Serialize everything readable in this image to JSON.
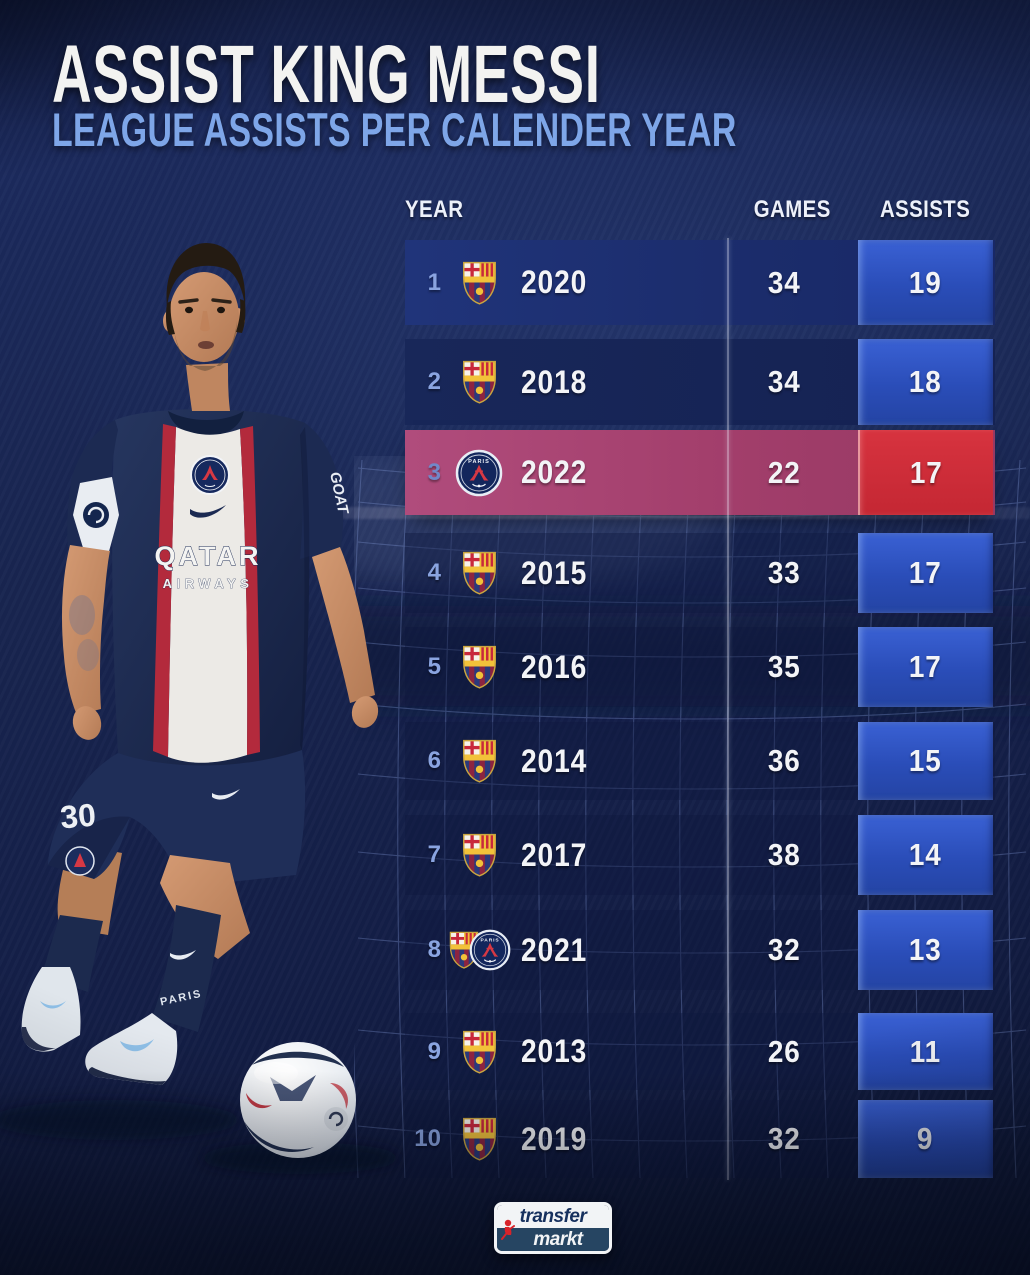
{
  "header": {
    "title": "ASSIST KING MESSI",
    "subtitle": "LEAGUE ASSISTS PER CALENDER YEAR"
  },
  "table": {
    "columns": {
      "year": "YEAR",
      "games": "GAMES",
      "assists": "ASSISTS"
    },
    "rows": [
      {
        "rank": "1",
        "clubs": [
          "barcelona"
        ],
        "year": "2020",
        "games": "34",
        "assists": "19",
        "highlighted": false
      },
      {
        "rank": "2",
        "clubs": [
          "barcelona"
        ],
        "year": "2018",
        "games": "34",
        "assists": "18",
        "highlighted": false
      },
      {
        "rank": "3",
        "clubs": [
          "psg"
        ],
        "year": "2022",
        "games": "22",
        "assists": "17",
        "highlighted": true
      },
      {
        "rank": "4",
        "clubs": [
          "barcelona"
        ],
        "year": "2015",
        "games": "33",
        "assists": "17",
        "highlighted": false
      },
      {
        "rank": "5",
        "clubs": [
          "barcelona"
        ],
        "year": "2016",
        "games": "35",
        "assists": "17",
        "highlighted": false
      },
      {
        "rank": "6",
        "clubs": [
          "barcelona"
        ],
        "year": "2014",
        "games": "36",
        "assists": "15",
        "highlighted": false
      },
      {
        "rank": "7",
        "clubs": [
          "barcelona"
        ],
        "year": "2017",
        "games": "38",
        "assists": "14",
        "highlighted": false
      },
      {
        "rank": "8",
        "clubs": [
          "barcelona",
          "psg"
        ],
        "year": "2021",
        "games": "32",
        "assists": "13",
        "highlighted": false
      },
      {
        "rank": "9",
        "clubs": [
          "barcelona"
        ],
        "year": "2013",
        "games": "26",
        "assists": "11",
        "highlighted": false
      },
      {
        "rank": "10",
        "clubs": [
          "barcelona"
        ],
        "year": "2019",
        "games": "32",
        "assists": "9",
        "highlighted": false
      }
    ]
  },
  "player": {
    "jersey_sponsor_line1": "QATAR",
    "jersey_sponsor_line2": "AIRWAYS",
    "jersey_sleeve_text": "GOAT",
    "shorts_number": "30",
    "sock_text": "PARIS"
  },
  "footer": {
    "logo_top": "transfer",
    "logo_bottom": "markt"
  },
  "colors": {
    "background": "#16224e",
    "row_blue": "#1d3070",
    "row_highlight_red": "#a23e6b",
    "assists_cell_blue": "#2d54c6",
    "assists_cell_red": "#d02f3e",
    "rank_text": "#8aa4e0",
    "subtitle_text": "#7ea6e8"
  },
  "chart_data": {
    "type": "table",
    "title": "ASSIST KING MESSI",
    "subtitle": "LEAGUE ASSISTS PER CALENDER YEAR",
    "columns": [
      "RANK",
      "YEAR",
      "GAMES",
      "ASSISTS"
    ],
    "rows": [
      [
        1,
        2020,
        34,
        19
      ],
      [
        2,
        2018,
        34,
        18
      ],
      [
        3,
        2022,
        22,
        17
      ],
      [
        4,
        2015,
        33,
        17
      ],
      [
        5,
        2016,
        35,
        17
      ],
      [
        6,
        2014,
        36,
        15
      ],
      [
        7,
        2017,
        38,
        14
      ],
      [
        8,
        2021,
        32,
        13
      ],
      [
        9,
        2013,
        26,
        11
      ],
      [
        10,
        2019,
        32,
        9
      ]
    ],
    "row_clubs": [
      "barcelona",
      "barcelona",
      "psg",
      "barcelona",
      "barcelona",
      "barcelona",
      "barcelona",
      "barcelona+psg",
      "barcelona",
      "barcelona"
    ],
    "highlighted_row_index": 2
  }
}
